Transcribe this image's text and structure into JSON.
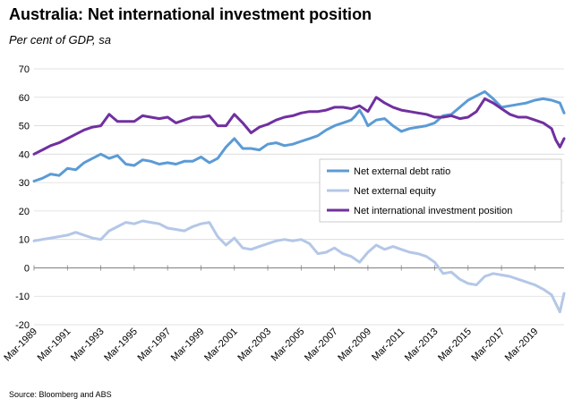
{
  "title": "Australia: Net international investment position",
  "subtitle": "Per cent of GDP, sa",
  "source": "Source: Bloomberg and ABS",
  "colors": {
    "debt": "#5b9bd5",
    "equity": "#b4c7e7",
    "niip": "#7030a0"
  },
  "chart_data": {
    "type": "line",
    "ylim": [
      -20,
      70
    ],
    "y_ticks": [
      70,
      60,
      50,
      40,
      30,
      20,
      10,
      0,
      -10,
      -20
    ],
    "x_tick_labels": [
      "Mar-1989",
      "Mar-1991",
      "Mar-1993",
      "Mar-1995",
      "Mar-1997",
      "Mar-1999",
      "Mar-2001",
      "Mar-2003",
      "Mar-2005",
      "Mar-2007",
      "Mar-2009",
      "Mar-2011",
      "Mar-2013",
      "Mar-2015",
      "Mar-2017",
      "Mar-2019"
    ],
    "x_range": [
      1989.0,
      2020.75
    ],
    "legend": [
      "Net external debt ratio",
      "Net external equity",
      "Net international investment position"
    ],
    "legend_placement": "center-right",
    "series": [
      {
        "name": "Net external debt ratio",
        "color": "#5b9bd5",
        "x": [
          1989.0,
          1989.5,
          1990.0,
          1990.5,
          1991.0,
          1991.5,
          1992.0,
          1992.5,
          1993.0,
          1993.5,
          1994.0,
          1994.5,
          1995.0,
          1995.5,
          1996.0,
          1996.5,
          1997.0,
          1997.5,
          1998.0,
          1998.5,
          1999.0,
          1999.5,
          2000.0,
          2000.5,
          2001.0,
          2001.5,
          2002.0,
          2002.5,
          2003.0,
          2003.5,
          2004.0,
          2004.5,
          2005.0,
          2005.5,
          2006.0,
          2006.5,
          2007.0,
          2007.5,
          2008.0,
          2008.25,
          2008.5,
          2008.75,
          2009.0,
          2009.5,
          2010.0,
          2010.5,
          2011.0,
          2011.5,
          2012.0,
          2012.5,
          2013.0,
          2013.5,
          2014.0,
          2014.5,
          2015.0,
          2015.5,
          2016.0,
          2016.5,
          2017.0,
          2017.5,
          2018.0,
          2018.5,
          2019.0,
          2019.5,
          2020.0,
          2020.5,
          2020.75
        ],
        "values": [
          30.5,
          31.5,
          33.0,
          32.5,
          35.0,
          34.5,
          37.0,
          38.5,
          40.0,
          38.5,
          39.5,
          36.5,
          36.0,
          38.0,
          37.5,
          36.5,
          37.0,
          36.5,
          37.5,
          37.5,
          39.0,
          37.0,
          38.5,
          42.5,
          45.5,
          42.0,
          42.0,
          41.5,
          43.5,
          44.0,
          43.0,
          43.5,
          44.5,
          45.5,
          46.5,
          48.5,
          50.0,
          51.0,
          52.0,
          53.5,
          55.5,
          53.0,
          50.0,
          52.0,
          52.5,
          50.0,
          48.0,
          49.0,
          49.5,
          50.0,
          51.0,
          53.5,
          54.0,
          56.5,
          59.0,
          60.5,
          62.0,
          59.5,
          56.5,
          57.0,
          57.5,
          58.0,
          59.0,
          59.5,
          59.0,
          58.0,
          54.5
        ]
      },
      {
        "name": "Net external equity",
        "color": "#b4c7e7",
        "x": [
          1989.0,
          1989.5,
          1990.0,
          1990.5,
          1991.0,
          1991.5,
          1992.0,
          1992.5,
          1993.0,
          1993.5,
          1994.0,
          1994.5,
          1995.0,
          1995.5,
          1996.0,
          1996.5,
          1997.0,
          1997.5,
          1998.0,
          1998.5,
          1999.0,
          1999.5,
          2000.0,
          2000.5,
          2001.0,
          2001.5,
          2002.0,
          2002.5,
          2003.0,
          2003.5,
          2004.0,
          2004.5,
          2005.0,
          2005.5,
          2006.0,
          2006.5,
          2007.0,
          2007.5,
          2008.0,
          2008.5,
          2009.0,
          2009.5,
          2010.0,
          2010.5,
          2011.0,
          2011.5,
          2012.0,
          2012.5,
          2013.0,
          2013.25,
          2013.5,
          2014.0,
          2014.5,
          2015.0,
          2015.5,
          2016.0,
          2016.5,
          2017.0,
          2017.5,
          2018.0,
          2018.5,
          2019.0,
          2019.5,
          2020.0,
          2020.5,
          2020.75
        ],
        "values": [
          9.5,
          10.0,
          10.5,
          11.0,
          11.5,
          12.5,
          11.5,
          10.5,
          10.0,
          13.0,
          14.5,
          16.0,
          15.5,
          16.5,
          16.0,
          15.5,
          14.0,
          13.5,
          13.0,
          14.5,
          15.5,
          16.0,
          11.0,
          8.0,
          10.5,
          7.0,
          6.5,
          7.5,
          8.5,
          9.5,
          10.0,
          9.5,
          10.0,
          8.5,
          5.0,
          5.5,
          7.0,
          5.0,
          4.0,
          2.0,
          5.5,
          8.0,
          6.5,
          7.5,
          6.5,
          5.5,
          5.0,
          4.0,
          2.0,
          0.0,
          -2.0,
          -1.5,
          -4.0,
          -5.5,
          -6.0,
          -3.0,
          -2.0,
          -2.5,
          -3.0,
          -4.0,
          -5.0,
          -6.0,
          -7.5,
          -9.5,
          -15.5,
          -9.0
        ]
      },
      {
        "name": "Net international investment position",
        "color": "#7030a0",
        "x": [
          1989.0,
          1989.5,
          1990.0,
          1990.5,
          1991.0,
          1991.5,
          1992.0,
          1992.5,
          1993.0,
          1993.5,
          1994.0,
          1994.5,
          1995.0,
          1995.5,
          1996.0,
          1996.5,
          1997.0,
          1997.5,
          1998.0,
          1998.5,
          1999.0,
          1999.5,
          2000.0,
          2000.5,
          2001.0,
          2001.5,
          2002.0,
          2002.5,
          2003.0,
          2003.5,
          2004.0,
          2004.5,
          2005.0,
          2005.5,
          2006.0,
          2006.5,
          2007.0,
          2007.5,
          2008.0,
          2008.5,
          2009.0,
          2009.5,
          2010.0,
          2010.5,
          2011.0,
          2011.5,
          2012.0,
          2012.5,
          2013.0,
          2013.5,
          2014.0,
          2014.5,
          2015.0,
          2015.5,
          2016.0,
          2016.5,
          2017.0,
          2017.5,
          2018.0,
          2018.5,
          2019.0,
          2019.5,
          2020.0,
          2020.25,
          2020.5,
          2020.75
        ],
        "values": [
          40.0,
          41.5,
          43.0,
          44.0,
          45.5,
          47.0,
          48.5,
          49.5,
          50.0,
          54.0,
          51.5,
          51.5,
          51.5,
          53.5,
          53.0,
          52.5,
          53.0,
          51.0,
          52.0,
          53.0,
          53.0,
          53.5,
          50.0,
          50.0,
          54.0,
          51.0,
          47.5,
          49.5,
          50.5,
          52.0,
          53.0,
          53.5,
          54.5,
          55.0,
          55.0,
          55.5,
          56.5,
          56.5,
          56.0,
          57.0,
          55.0,
          60.0,
          58.0,
          56.5,
          55.5,
          55.0,
          54.5,
          54.0,
          53.0,
          53.0,
          53.5,
          52.5,
          53.0,
          55.0,
          59.5,
          58.0,
          56.0,
          54.0,
          53.0,
          53.0,
          52.0,
          51.0,
          49.0,
          45.0,
          42.5,
          45.5
        ]
      }
    ]
  }
}
